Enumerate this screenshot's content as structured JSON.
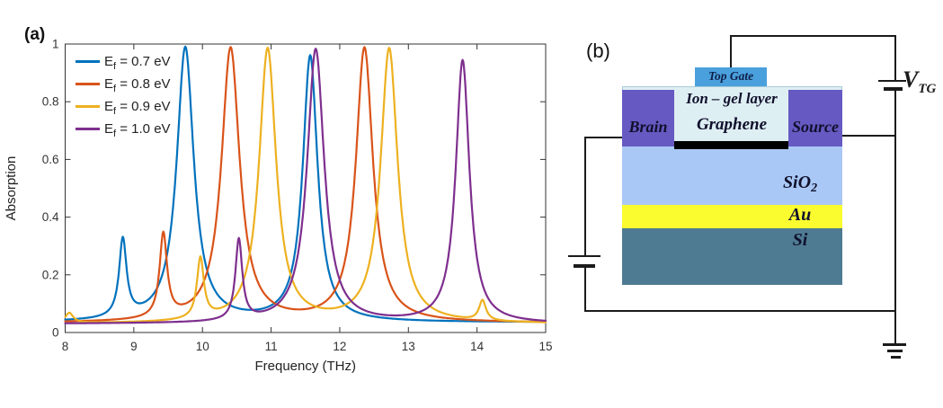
{
  "figure": {
    "panel_a_label": "(a)",
    "panel_b_label": "(b)"
  },
  "chart_data": {
    "type": "line",
    "title": "",
    "xlabel": "Frequency (THz)",
    "ylabel": "Absorption",
    "xlim": [
      8,
      15
    ],
    "ylim": [
      0,
      1
    ],
    "x_ticks": [
      8,
      9,
      10,
      11,
      12,
      13,
      14,
      15
    ],
    "y_ticks": [
      0,
      0.2,
      0.4,
      0.6,
      0.8,
      1
    ],
    "grid": false,
    "legend_position": "top-left-inside-no-box",
    "axis_color": "#333333",
    "series": [
      {
        "name": "Ef = 0.7 eV",
        "legend": {
          "base": "E",
          "sub": "f",
          "rest": " = 0.7 eV"
        },
        "color": "#0072BD",
        "baseline": 0.035,
        "lorentzian_peaks": [
          {
            "f0": 8.84,
            "amp": 0.27,
            "fwhm": 0.13
          },
          {
            "f0": 9.75,
            "amp": 0.95,
            "fwhm": 0.3
          },
          {
            "f0": 11.57,
            "amp": 0.92,
            "fwhm": 0.26
          }
        ],
        "peak_apexes": [
          [
            8.84,
            0.33
          ],
          [
            9.75,
            0.99
          ],
          [
            11.57,
            0.97
          ]
        ]
      },
      {
        "name": "Ef = 0.8 eV",
        "legend": {
          "base": "E",
          "sub": "f",
          "rest": " = 0.8 eV"
        },
        "color": "#D95319",
        "baseline": 0.033,
        "lorentzian_peaks": [
          {
            "f0": 9.43,
            "amp": 0.29,
            "fwhm": 0.13
          },
          {
            "f0": 10.41,
            "amp": 0.95,
            "fwhm": 0.32
          },
          {
            "f0": 12.36,
            "amp": 0.95,
            "fwhm": 0.3
          }
        ],
        "peak_apexes": [
          [
            9.43,
            0.35
          ],
          [
            10.41,
            1.0
          ],
          [
            12.36,
            0.99
          ]
        ]
      },
      {
        "name": "Ef = 0.9 eV",
        "legend": {
          "base": "E",
          "sub": "f",
          "rest": " = 0.9 eV"
        },
        "color": "#EDB120",
        "baseline": 0.03,
        "lorentzian_peaks": [
          {
            "f0": 8.06,
            "amp": 0.035,
            "fwhm": 0.14
          },
          {
            "f0": 9.97,
            "amp": 0.21,
            "fwhm": 0.12
          },
          {
            "f0": 10.95,
            "amp": 0.95,
            "fwhm": 0.3
          },
          {
            "f0": 12.72,
            "amp": 0.95,
            "fwhm": 0.3
          },
          {
            "f0": 14.08,
            "amp": 0.07,
            "fwhm": 0.12
          }
        ],
        "peak_apexes": [
          [
            9.97,
            0.26
          ],
          [
            10.95,
            0.99
          ],
          [
            12.72,
            0.99
          ],
          [
            14.08,
            0.1
          ]
        ]
      },
      {
        "name": "Ef = 1.0 eV",
        "legend": {
          "base": "E",
          "sub": "f",
          "rest": " = 1.0 eV"
        },
        "color": "#7E2F8E",
        "baseline": 0.03,
        "lorentzian_peaks": [
          {
            "f0": 10.53,
            "amp": 0.28,
            "fwhm": 0.12
          },
          {
            "f0": 11.65,
            "amp": 0.95,
            "fwhm": 0.3
          },
          {
            "f0": 13.79,
            "amp": 0.91,
            "fwhm": 0.24
          }
        ],
        "peak_apexes": [
          [
            10.53,
            0.33
          ],
          [
            11.65,
            0.99
          ],
          [
            13.79,
            0.945
          ]
        ]
      }
    ]
  },
  "schematic": {
    "top_gate": "Top Gate",
    "ion_gel": "Ion – gel layer",
    "graphene": "Graphene",
    "drain": "Brain",
    "source": "Source",
    "sio2": {
      "base": "SiO",
      "sub": "2"
    },
    "au": "Au",
    "si": "Si",
    "vtg": {
      "base": "V",
      "sub": "TG"
    },
    "colors": {
      "top_gate": "#4aa0dc",
      "ion_gel": "#deeff3",
      "contact_purple": "#6659c1",
      "graphene": "#000000",
      "sio2": "#aac8f5",
      "au": "#fbfc30",
      "si": "#4e7b92",
      "wire": "#1b1b1b"
    }
  }
}
